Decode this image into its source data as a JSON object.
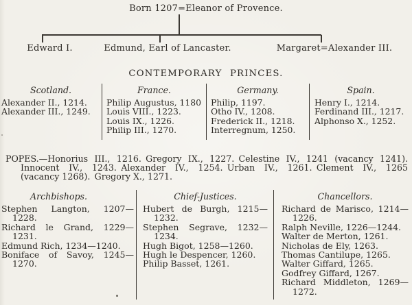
{
  "tree": {
    "parents": "Born 1207=Eleanor of Provence.",
    "children": [
      {
        "label": "Edward I."
      },
      {
        "label": "Edmund, Earl of Lancaster."
      },
      {
        "label": "Margaret=Alexander III."
      }
    ]
  },
  "princes": {
    "title": "CONTEMPORARY PRINCES.",
    "columns": [
      {
        "key": "scotland",
        "header": "Scotland.",
        "items": [
          "Alexander II., 1214.",
          "Alexander III., 1249."
        ]
      },
      {
        "key": "france",
        "header": "France.",
        "items": [
          "Philip Augustus, 1180",
          "Louis VIII., 1223.",
          "Louis IX., 1226.",
          "Philip III., 1270."
        ]
      },
      {
        "key": "germany",
        "header": "Germany.",
        "items": [
          "Philip, 1197.",
          "Otho IV., 1208.",
          "Frederick II., 1218.",
          "Interregnum, 1250."
        ]
      },
      {
        "key": "spain",
        "header": "Spain.",
        "items": [
          "Henry I., 1214.",
          "Ferdinand III., 1217.",
          "Alphonso X., 1252."
        ]
      }
    ]
  },
  "popes": {
    "lines": [
      "POPES.—Honorius III., 1216. Gregory IX., 1227. Celestine IV., 1241 (vacancy 1241).",
      "Innocent IV., 1243. Alexander IV., 1254. Urban IV., 1261. Clement IV., 1265",
      "(vacancy 1268). Gregory X., 1271."
    ]
  },
  "officials": {
    "columns": [
      {
        "key": "archbishops",
        "header": "Archbishops.",
        "entries": [
          [
            "Stephen Langton, 1207—",
            "1228."
          ],
          [
            "Richard le Grand, 1229—",
            "1231."
          ],
          [
            "Edmund Rich, 1234—1240."
          ],
          [
            "Boniface of Savoy, 1245—",
            "1270."
          ]
        ]
      },
      {
        "key": "chief-justices",
        "header": "Chief-Justices.",
        "entries": [
          [
            "Hubert de Burgh, 1215—",
            "1232."
          ],
          [
            "Stephen Segrave, 1232—",
            "1234."
          ],
          [
            "Hugh Bigot, 1258—1260."
          ],
          [
            "Hugh le Despencer, 1260."
          ],
          [
            "Philip Basset, 1261."
          ]
        ]
      },
      {
        "key": "chancellors",
        "header": "Chancellors.",
        "entries": [
          [
            "Richard de Marisco, 1214—",
            "1226."
          ],
          [
            "Ralph Neville, 1226—1244."
          ],
          [
            "Walter de Merton, 1261."
          ],
          [
            "Nicholas de Ely, 1263."
          ],
          [
            "Thomas Cantilupe, 1265."
          ],
          [
            "Walter Giffard, 1265."
          ],
          [
            "Godfrey Giffard, 1267."
          ],
          [
            "Richard Middleton, 1269—",
            "1272."
          ]
        ]
      }
    ]
  }
}
